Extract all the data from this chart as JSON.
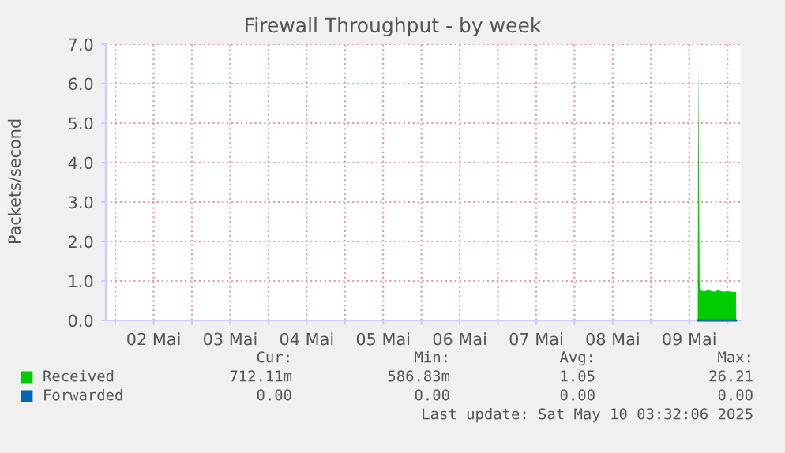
{
  "chart_data": {
    "type": "area",
    "title": "Firewall Throughput - by week",
    "ylabel": "Packets/second",
    "xlim": [
      "2025-05-01T21:00",
      "2025-05-10T04:10"
    ],
    "xticks": [
      {
        "value": "2025-05-02T00:00",
        "label": null
      },
      {
        "value": "2025-05-02T12:00",
        "label": "02 Mai"
      },
      {
        "value": "2025-05-03T00:00",
        "label": null
      },
      {
        "value": "2025-05-03T12:00",
        "label": "03 Mai"
      },
      {
        "value": "2025-05-04T00:00",
        "label": null
      },
      {
        "value": "2025-05-04T12:00",
        "label": "04 Mai"
      },
      {
        "value": "2025-05-05T00:00",
        "label": null
      },
      {
        "value": "2025-05-05T12:00",
        "label": "05 Mai"
      },
      {
        "value": "2025-05-06T00:00",
        "label": null
      },
      {
        "value": "2025-05-06T12:00",
        "label": "06 Mai"
      },
      {
        "value": "2025-05-07T00:00",
        "label": null
      },
      {
        "value": "2025-05-07T12:00",
        "label": "07 Mai"
      },
      {
        "value": "2025-05-08T00:00",
        "label": null
      },
      {
        "value": "2025-05-08T12:00",
        "label": "08 Mai"
      },
      {
        "value": "2025-05-09T00:00",
        "label": null
      },
      {
        "value": "2025-05-09T12:00",
        "label": "09 Mai"
      },
      {
        "value": "2025-05-10T00:00",
        "label": null
      }
    ],
    "ylim": [
      0,
      7
    ],
    "yticks": [
      {
        "value": 0,
        "label": "0.0"
      },
      {
        "value": 1,
        "label": "1.0"
      },
      {
        "value": 2,
        "label": "2.0"
      },
      {
        "value": 3,
        "label": "3.0"
      },
      {
        "value": 4,
        "label": "4.0"
      },
      {
        "value": 5,
        "label": "5.0"
      },
      {
        "value": 6,
        "label": "6.0"
      },
      {
        "value": 7,
        "label": "7.0"
      }
    ],
    "grid": true,
    "legend": "bottom",
    "series": [
      {
        "name": "Received",
        "color": "#00cc00",
        "x": [
          "2025-05-09T14:40",
          "2025-05-09T14:50",
          "2025-05-09T15:15",
          "2025-05-09T15:45",
          "2025-05-09T17:00",
          "2025-05-09T18:00",
          "2025-05-09T19:00",
          "2025-05-09T20:00",
          "2025-05-09T21:00",
          "2025-05-09T22:00",
          "2025-05-09T23:00",
          "2025-05-10T00:00",
          "2025-05-10T01:00",
          "2025-05-10T02:00",
          "2025-05-10T02:40"
        ],
        "values": [
          0,
          6.6,
          1.0,
          0.75,
          0.74,
          0.78,
          0.74,
          0.73,
          0.77,
          0.74,
          0.73,
          0.74,
          0.73,
          0.72,
          0.72
        ]
      },
      {
        "name": "Forwarded",
        "color": "#0066b3",
        "type": "line",
        "x": [
          "2025-05-09T14:40",
          "2025-05-10T02:40"
        ],
        "values": [
          0,
          0
        ]
      }
    ],
    "annotations": [
      "Cur:",
      "Min:",
      "Avg:",
      "Max:",
      "712.11m",
      "586.83m",
      "1.05",
      "26.21",
      "0.00",
      "0.00",
      "0.00",
      "0.00",
      "Last update: Sat May 10 03:32:06 2025"
    ]
  }
}
